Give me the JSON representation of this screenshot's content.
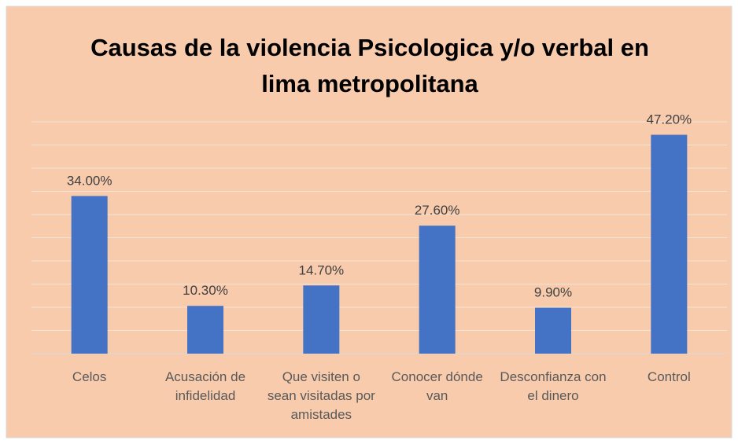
{
  "chart_data": {
    "type": "bar",
    "title": "Causas de la violencia Psicologica y/o verbal en lima metropolitana",
    "categories": [
      "Celos",
      "Acusación de infidelidad",
      "Que visiten o sean visitadas por amistades",
      "Conocer dónde van",
      "Desconfianza con el dinero",
      "Control"
    ],
    "values": [
      34.0,
      10.3,
      14.7,
      27.6,
      9.9,
      47.2
    ],
    "value_labels": [
      "34.00%",
      "10.30%",
      "14.70%",
      "27.60%",
      "9.90%",
      "47.20%"
    ],
    "color": "#4472c4",
    "ylim": [
      0,
      50
    ],
    "yticks": [
      0,
      5,
      10,
      15,
      20,
      25,
      30,
      35,
      40,
      45,
      50
    ],
    "grid": true
  }
}
